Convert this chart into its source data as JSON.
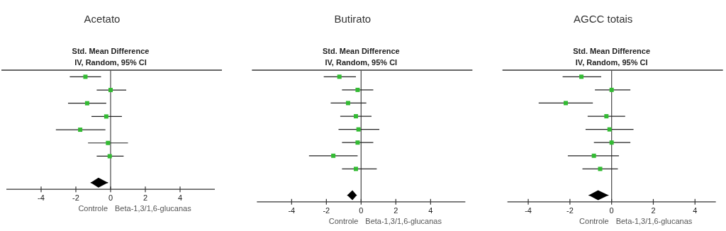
{
  "chart_data": [
    {
      "type": "scatter",
      "orientation": "horizontal",
      "title": "Acetato",
      "subtitle": "Std. Mean Difference",
      "annotations": [
        "IV, Random, 95% CI",
        "Controle",
        "Beta-1,3/1,6-glucanas"
      ],
      "categories": [
        null,
        null,
        null,
        null,
        null,
        null,
        null,
        null,
        null
      ],
      "xlim": [
        -6,
        6
      ],
      "xticks": [
        -4,
        -2,
        0,
        2,
        4
      ],
      "tick_labels": "x",
      "ref_lines": [
        {
          "axis": "x",
          "value": 0
        }
      ],
      "series": [
        {
          "type": "scatter",
          "marker": "square",
          "color": "#33bb33",
          "values": [
            -1.45,
            0,
            -1.35,
            -0.25,
            -1.75,
            -0.15,
            -0.05,
            null,
            null
          ],
          "errors": [
            [
              -2.35,
              -0.55
            ],
            [
              -0.8,
              0.9
            ],
            [
              -2.45,
              -0.25
            ],
            [
              -1.1,
              0.65
            ],
            [
              -3.15,
              -0.3
            ],
            [
              -1.3,
              1.0
            ],
            [
              -0.8,
              0.75
            ],
            null,
            null
          ]
        },
        {
          "type": "scatter",
          "marker": "diamond",
          "color": "#000000",
          "values": [
            null,
            null,
            null,
            null,
            null,
            null,
            null,
            null,
            -0.7
          ],
          "errors": [
            null,
            null,
            null,
            null,
            null,
            null,
            null,
            null,
            [
              -1.15,
              -0.15
            ]
          ]
        }
      ]
    },
    {
      "type": "scatter",
      "orientation": "horizontal",
      "title": "Butirato",
      "subtitle": "Std. Mean Difference",
      "annotations": [
        "IV, Random, 95% CI",
        "Controle",
        "Beta-1,3/1,6-glucanas"
      ],
      "categories": [
        null,
        null,
        null,
        null,
        null,
        null,
        null,
        null,
        null,
        null
      ],
      "xlim": [
        -6,
        6
      ],
      "xticks": [
        -4,
        -2,
        0,
        2,
        4
      ],
      "tick_labels": "x",
      "ref_lines": [
        {
          "axis": "x",
          "value": 0
        }
      ],
      "series": [
        {
          "type": "scatter",
          "marker": "square",
          "color": "#33bb33",
          "values": [
            -1.25,
            -0.2,
            -0.75,
            -0.3,
            -0.15,
            -0.2,
            -1.6,
            -0.3,
            null,
            null
          ],
          "errors": [
            [
              -2.15,
              -0.3
            ],
            [
              -1.1,
              0.7
            ],
            [
              -1.75,
              0.3
            ],
            [
              -1.2,
              0.6
            ],
            [
              -1.3,
              1.05
            ],
            [
              -1.1,
              0.7
            ],
            [
              -3.0,
              -0.2
            ],
            [
              -1.1,
              0.9
            ],
            null,
            null
          ]
        },
        {
          "type": "scatter",
          "marker": "diamond",
          "color": "#000000",
          "values": [
            null,
            null,
            null,
            null,
            null,
            null,
            null,
            null,
            null,
            -0.5
          ],
          "errors": [
            null,
            null,
            null,
            null,
            null,
            null,
            null,
            null,
            null,
            [
              -0.8,
              -0.25
            ]
          ]
        }
      ]
    },
    {
      "type": "scatter",
      "orientation": "horizontal",
      "title": "AGCC totais",
      "subtitle": "Std. Mean Difference",
      "annotations": [
        "IV, Random, 95% CI",
        "Controle",
        "Beta-1,3/1,6-glucanas"
      ],
      "categories": [
        null,
        null,
        null,
        null,
        null,
        null,
        null,
        null,
        null,
        null
      ],
      "xlim": [
        -5,
        5
      ],
      "xticks": [
        -4,
        -2,
        0,
        2,
        4
      ],
      "tick_labels": "x",
      "ref_lines": [
        {
          "axis": "x",
          "value": 0
        }
      ],
      "series": [
        {
          "type": "scatter",
          "marker": "square",
          "color": "#33bb33",
          "values": [
            -1.45,
            0,
            -2.2,
            -0.25,
            -0.1,
            0,
            -0.85,
            -0.55,
            null,
            null
          ],
          "errors": [
            [
              -2.35,
              -0.5
            ],
            [
              -0.8,
              0.9
            ],
            [
              -3.5,
              -0.9
            ],
            [
              -1.15,
              0.65
            ],
            [
              -1.25,
              1.05
            ],
            [
              -0.85,
              0.9
            ],
            [
              -2.1,
              0.35
            ],
            [
              -1.4,
              0.3
            ],
            null,
            null
          ]
        },
        {
          "type": "scatter",
          "marker": "diamond",
          "color": "#000000",
          "values": [
            null,
            null,
            null,
            null,
            null,
            null,
            null,
            null,
            null,
            -0.65
          ],
          "errors": [
            null,
            null,
            null,
            null,
            null,
            null,
            null,
            null,
            null,
            [
              -1.1,
              -0.15
            ]
          ]
        }
      ]
    }
  ]
}
